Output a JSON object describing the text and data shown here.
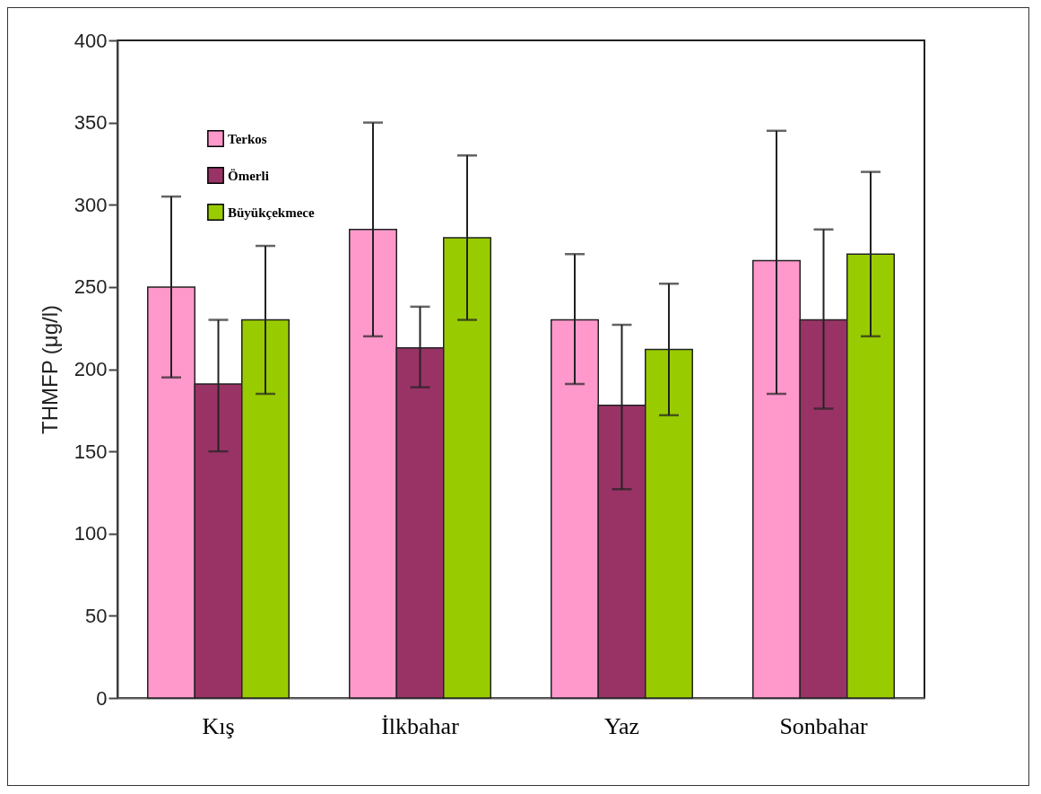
{
  "chart_data": {
    "type": "bar",
    "ylabel": "THMFP (μg/l)",
    "categories": [
      "Kış",
      "İlkbahar",
      "Yaz",
      "Sonbahar"
    ],
    "series": [
      {
        "name": "Terkos",
        "color": "#ff99cc",
        "values": [
          250,
          285,
          230,
          266
        ],
        "errors": [
          [
            195,
            305
          ],
          [
            220,
            350
          ],
          [
            191,
            270
          ],
          [
            185,
            345
          ]
        ]
      },
      {
        "name": "Ömerli",
        "color": "#993366",
        "values": [
          191,
          213,
          178,
          230
        ],
        "errors": [
          [
            150,
            230
          ],
          [
            189,
            238
          ],
          [
            127,
            227
          ],
          [
            176,
            285
          ]
        ]
      },
      {
        "name": "Büyükçekmece",
        "color": "#99cc00",
        "values": [
          230,
          280,
          212,
          270
        ],
        "errors": [
          [
            185,
            275
          ],
          [
            230,
            330
          ],
          [
            172,
            252
          ],
          [
            220,
            320
          ]
        ]
      }
    ],
    "ylim": [
      0,
      400
    ],
    "yticks": [
      0,
      50,
      100,
      150,
      200,
      250,
      300,
      350,
      400
    ],
    "grid": false,
    "legend": "top left"
  }
}
